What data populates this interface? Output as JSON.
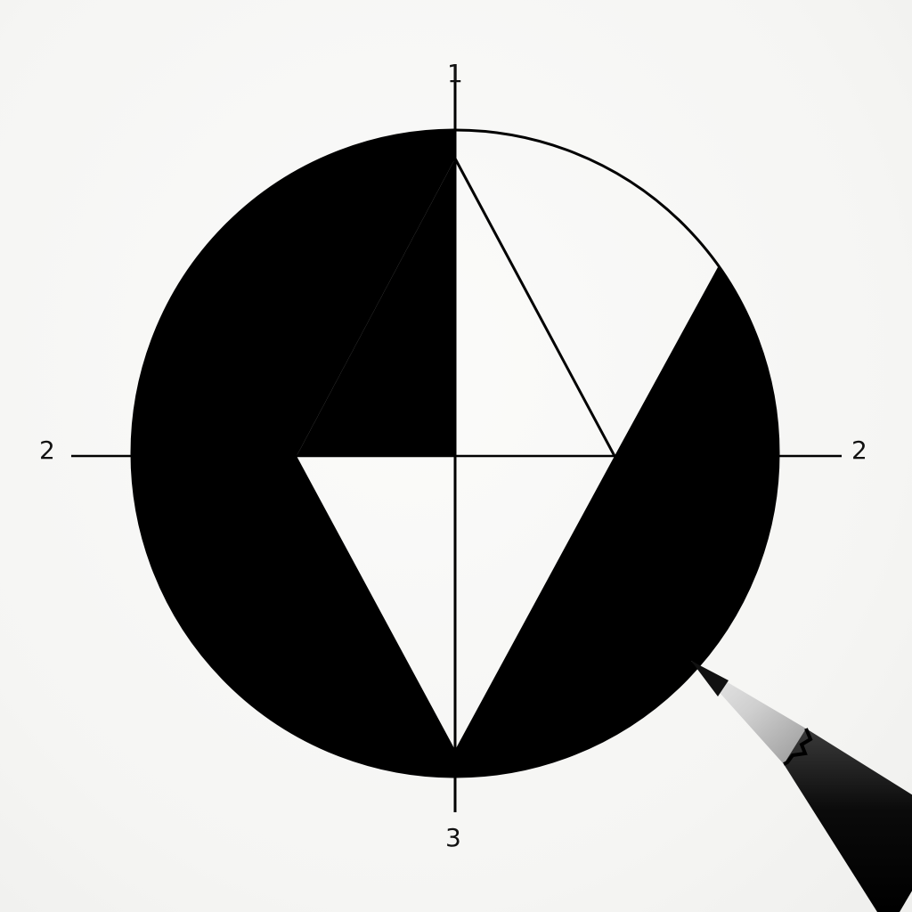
{
  "labels": {
    "top": "1",
    "left": "2",
    "right": "2",
    "bottom": "3"
  },
  "colors": {
    "ink": "#000000",
    "paper": "#f7f7f5",
    "pencil_wood": "#d8d8d8",
    "pencil_body": "#111111"
  }
}
